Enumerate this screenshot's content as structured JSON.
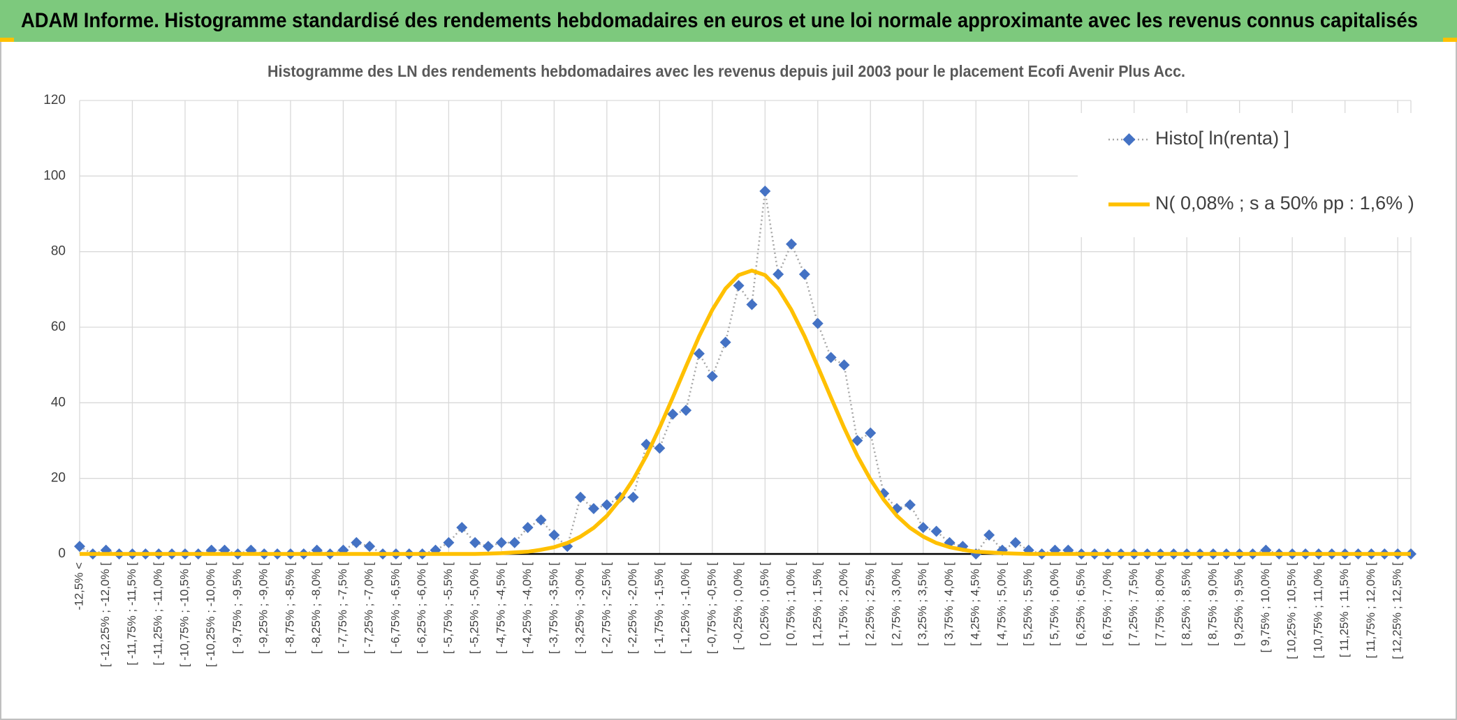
{
  "header": {
    "title": "ADAM Informe. Histogramme standardisé des rendements hebdomadaires en euros et une loi normale approximante avec les revenus connus capitalisés"
  },
  "chart_data": {
    "type": "line",
    "title": "Histogramme des LN des rendements hebdomadaires avec les revenus depuis juil 2003 pour le placement Ecofi Avenir Plus Acc.",
    "categories": [
      "-12,5% <",
      null,
      "[ -12,25% ; -12,0% [",
      null,
      "[ -11,75% ; -11,5% [",
      null,
      "[ -11,25% ; -11,0% [",
      null,
      "[ -10,75% ; -10,5% [",
      null,
      "[ -10,25% ; -10,0% [",
      null,
      "[ -9,75% ; -9,5% [",
      null,
      "[ -9,25% ; -9,0% [",
      null,
      "[ -8,75% ; -8,5% [",
      null,
      "[ -8,25% ; -8,0% [",
      null,
      "[ -7,75% ; -7,5% [",
      null,
      "[ -7,25% ; -7,0% [",
      null,
      "[ -6,75% ; -6,5% [",
      null,
      "[ -6,25% ; -6,0% [",
      null,
      "[ -5,75% ; -5,5% [",
      null,
      "[ -5,25% ; -5,0% [",
      null,
      "[ -4,75% ; -4,5% [",
      null,
      "[ -4,25% ; -4,0% [",
      null,
      "[ -3,75% ; -3,5% [",
      null,
      "[ -3,25% ; -3,0% [",
      null,
      "[ -2,75% ; -2,5% [",
      null,
      "[ -2,25% ; -2,0% [",
      null,
      "[ -1,75% ; -1,5% [",
      null,
      "[ -1,25% ; -1,0% [",
      null,
      "[ -0,75% ; -0,5% [",
      null,
      "[ -0,25% ; 0,0% [",
      null,
      "[ 0,25% ; 0,5% [",
      null,
      "[ 0,75% ; 1,0% [",
      null,
      "[ 1,25% ; 1,5% [",
      null,
      "[ 1,75% ; 2,0% [",
      null,
      "[ 2,25% ; 2,5% [",
      null,
      "[ 2,75% ; 3,0% [",
      null,
      "[ 3,25% ; 3,5% [",
      null,
      "[ 3,75% ; 4,0% [",
      null,
      "[ 4,25% ; 4,5% [",
      null,
      "[ 4,75% ; 5,0% [",
      null,
      "[ 5,25% ; 5,5% [",
      null,
      "[ 5,75% ; 6,0% [",
      null,
      "[ 6,25% ; 6,5% [",
      null,
      "[ 6,75% ; 7,0% [",
      null,
      "[ 7,25% ; 7,5% [",
      null,
      "[ 7,75% ; 8,0% [",
      null,
      "[ 8,25% ; 8,5% [",
      null,
      "[ 8,75% ; 9,0% [",
      null,
      "[ 9,25% ; 9,5% [",
      null,
      "[ 9,75% ; 10,0% [",
      null,
      "[ 10,25% ; 10,5% [",
      null,
      "[ 10,75% ; 11,0% [",
      null,
      "[ 11,25% ; 11,5% [",
      null,
      "[ 11,75% ; 12,0% [",
      null,
      "[ 12,25% ; 12,5% [",
      null
    ],
    "series": [
      {
        "name": "Histo[ ln(renta) ]",
        "color": "#4472c4",
        "line_color": "#a6a6a6",
        "marker": "diamond",
        "values": [
          2,
          0,
          1,
          0,
          0,
          0,
          0,
          0,
          0,
          0,
          1,
          1,
          0,
          1,
          0,
          0,
          0,
          0,
          1,
          0,
          1,
          3,
          2,
          0,
          0,
          0,
          0,
          1,
          3,
          7,
          3,
          2,
          3,
          3,
          7,
          9,
          5,
          2,
          15,
          12,
          13,
          15,
          15,
          29,
          28,
          37,
          38,
          53,
          47,
          56,
          71,
          66,
          96,
          74,
          82,
          74,
          61,
          52,
          50,
          30,
          32,
          16,
          12,
          13,
          7,
          6,
          3,
          2,
          0,
          5,
          1,
          3,
          1,
          0,
          1,
          1,
          0,
          0,
          0,
          0,
          0,
          0,
          0,
          0,
          0,
          0,
          0,
          0,
          0,
          0,
          1,
          0,
          0,
          0,
          0,
          0,
          0,
          0,
          0,
          0,
          0,
          0
        ]
      },
      {
        "name": "N( 0,08% ; s a 50% pp : 1,6% )",
        "color": "#ffc000",
        "values": [
          0,
          0,
          0,
          0,
          0,
          0,
          0,
          0,
          0,
          0,
          0,
          0,
          0,
          0,
          0,
          0,
          0,
          0,
          0,
          0,
          0,
          0,
          0,
          0,
          0,
          0,
          0,
          0,
          0,
          0,
          0,
          0.1,
          0.2,
          0.4,
          0.6,
          1.1,
          1.8,
          2.9,
          4.6,
          6.9,
          10.1,
          14.4,
          19.7,
          26.0,
          33.4,
          41.4,
          49.6,
          57.6,
          64.6,
          70.2,
          73.8,
          75,
          73.8,
          70.2,
          64.6,
          57.6,
          49.6,
          41.4,
          33.4,
          26.0,
          19.7,
          14.4,
          10.1,
          6.9,
          4.6,
          2.9,
          1.8,
          1.1,
          0.6,
          0.4,
          0.2,
          0.1,
          0,
          0,
          0,
          0,
          0,
          0,
          0,
          0,
          0,
          0,
          0,
          0,
          0,
          0,
          0,
          0,
          0,
          0,
          0,
          0,
          0,
          0,
          0,
          0,
          0,
          0,
          0,
          0,
          0,
          0
        ]
      }
    ],
    "ylim": [
      0,
      120
    ],
    "yticks": [
      0,
      20,
      40,
      60,
      80,
      100,
      120
    ],
    "grid": true,
    "legend": "upper right"
  }
}
